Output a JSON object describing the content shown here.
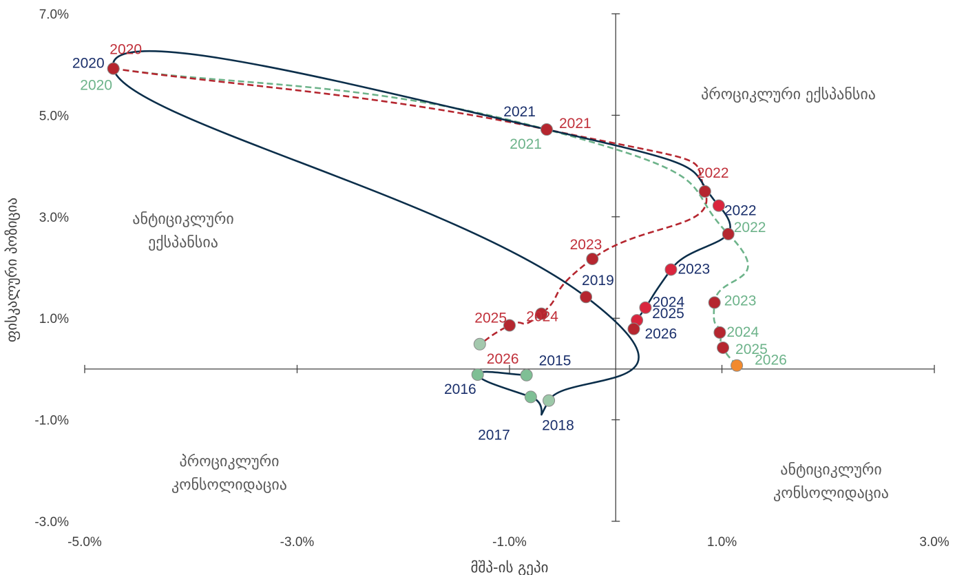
{
  "chart_data": {
    "type": "scatter",
    "title": "",
    "xlabel": "მშპ-ის გეპი",
    "ylabel": "ფისკალური პოზიცია",
    "xlim": [
      -0.05,
      0.03
    ],
    "ylim": [
      -0.03,
      0.07
    ],
    "x_ticks": [
      {
        "value": -0.05,
        "label": "-5.0%"
      },
      {
        "value": -0.03,
        "label": "-3.0%"
      },
      {
        "value": -0.01,
        "label": "-1.0%"
      },
      {
        "value": 0.01,
        "label": "1.0%"
      },
      {
        "value": 0.03,
        "label": "3.0%"
      }
    ],
    "y_ticks": [
      {
        "value": 0.07,
        "label": "7.0%"
      },
      {
        "value": 0.05,
        "label": "5.0%"
      },
      {
        "value": 0.03,
        "label": "3.0%"
      },
      {
        "value": 0.01,
        "label": "1.0%"
      },
      {
        "value": -0.01,
        "label": "-1.0%"
      },
      {
        "value": -0.03,
        "label": "-3.0%"
      }
    ],
    "grid": false,
    "legend": "none",
    "quadrant_labels": {
      "top_right": [
        "პროციკლური ექსპანსია"
      ],
      "top_left": [
        "ანტიციკლური",
        "ექსპანსია"
      ],
      "bottom_left": [
        "პროციკლური",
        "კონსოლიდაცია"
      ],
      "bottom_right": [
        "ანტიციკლური",
        "კონსოლიდაცია"
      ]
    },
    "series": [
      {
        "color": "#0b2e4a",
        "dash": "solid",
        "labels_color": "#1a2f6b",
        "points": [
          {
            "label": "2015",
            "x": -0.0084,
            "y": -0.0012,
            "fill": "#7fbf95"
          },
          {
            "label": "2016",
            "x": -0.013,
            "y": -0.0011,
            "fill": "#7fbf95"
          },
          {
            "label": "2017",
            "x": -0.008,
            "y": -0.0055,
            "fill": "#7fbf95"
          },
          {
            "label": "2018",
            "x": -0.0063,
            "y": -0.0062,
            "fill": "#9cc8a8"
          },
          {
            "label": "2019",
            "x": -0.0028,
            "y": 0.0142,
            "fill": "#b5262f"
          },
          {
            "label": "2020",
            "x": -0.0473,
            "y": 0.0592,
            "fill": "#b5262f"
          },
          {
            "label": "2021",
            "x": -0.0065,
            "y": 0.0472,
            "fill": "#b5262f"
          },
          {
            "label": "2022",
            "x": 0.0097,
            "y": 0.0322,
            "fill": "#d9263e"
          },
          {
            "label": "2023",
            "x": 0.0052,
            "y": 0.0196,
            "fill": "#d9263e"
          },
          {
            "label": "2024",
            "x": 0.0028,
            "y": 0.0121,
            "fill": "#d9263e"
          },
          {
            "label": "2025",
            "x": 0.002,
            "y": 0.0096,
            "fill": "#d9263e"
          },
          {
            "label": "2026",
            "x": 0.0017,
            "y": 0.0079,
            "fill": "#b5262f"
          }
        ]
      },
      {
        "color": "#b5262f",
        "dash": "dashed",
        "labels_color": "#c0303a",
        "points": [
          {
            "label": "2020",
            "x": -0.0473,
            "y": 0.0592,
            "fill": "#b5262f"
          },
          {
            "label": "2021",
            "x": -0.0065,
            "y": 0.0472,
            "fill": "#b5262f"
          },
          {
            "label": "2022",
            "x": 0.0084,
            "y": 0.035,
            "fill": "#b5262f"
          },
          {
            "label": "2023",
            "x": -0.0022,
            "y": 0.0217,
            "fill": "#b5262f"
          },
          {
            "label": "2024",
            "x": -0.007,
            "y": 0.0109,
            "fill": "#b5262f"
          },
          {
            "label": "2025",
            "x": -0.01,
            "y": 0.0086,
            "fill": "#b5262f"
          },
          {
            "label": "2026",
            "x": -0.0128,
            "y": 0.0049,
            "fill": "#a3c8ad"
          }
        ]
      },
      {
        "color": "#6db38a",
        "dash": "dashed",
        "labels_color": "#6db38a",
        "points": [
          {
            "label": "2020",
            "x": -0.0473,
            "y": 0.0592,
            "fill": "#b5262f"
          },
          {
            "label": "2021",
            "x": -0.0065,
            "y": 0.0472,
            "fill": "#b5262f"
          },
          {
            "label": "2022",
            "x": 0.0106,
            "y": 0.0266,
            "fill": "#b5262f"
          },
          {
            "label": "2023",
            "x": 0.0093,
            "y": 0.0131,
            "fill": "#b5262f"
          },
          {
            "label": "2024",
            "x": 0.0098,
            "y": 0.0072,
            "fill": "#b5262f"
          },
          {
            "label": "2025",
            "x": 0.0101,
            "y": 0.0042,
            "fill": "#b5262f"
          },
          {
            "label": "2026",
            "x": 0.0114,
            "y": 0.0007,
            "fill": "#f28a2e"
          }
        ]
      }
    ]
  }
}
